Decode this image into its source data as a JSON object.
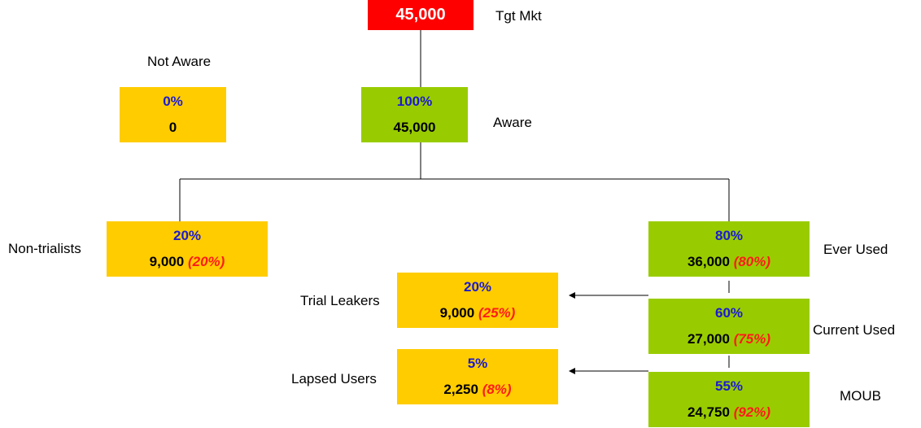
{
  "nodes": {
    "target": {
      "value": "45,000",
      "label": "Tgt Mkt"
    },
    "not_aware": {
      "heading": "Not Aware",
      "pct": "0%",
      "value": "0"
    },
    "aware": {
      "pct": "100%",
      "value": "45,000",
      "label": "Aware"
    },
    "non_trialists": {
      "pct": "20%",
      "value": "9,000",
      "sub": "(20%)",
      "label": "Non-trialists"
    },
    "ever_used": {
      "pct": "80%",
      "value": "36,000",
      "sub": "(80%)",
      "label": "Ever Used"
    },
    "trial_leakers": {
      "pct": "20%",
      "value": "9,000",
      "sub": "(25%)",
      "label": "Trial Leakers"
    },
    "current_used": {
      "pct": "60%",
      "value": "27,000",
      "sub": "(75%)",
      "label": "Current Used"
    },
    "lapsed_users": {
      "pct": "5%",
      "value": "2,250",
      "sub": "(8%)",
      "label": "Lapsed Users"
    },
    "moub": {
      "pct": "55%",
      "value": "24,750",
      "sub": "(92%)",
      "label": "MOUB"
    }
  },
  "colors": {
    "target_fill": "#ff0000",
    "yellow_fill": "#ffcc00",
    "green_fill": "#99cc00",
    "pct_text": "#1a1ad0",
    "sub_text": "#ff1a1a"
  }
}
